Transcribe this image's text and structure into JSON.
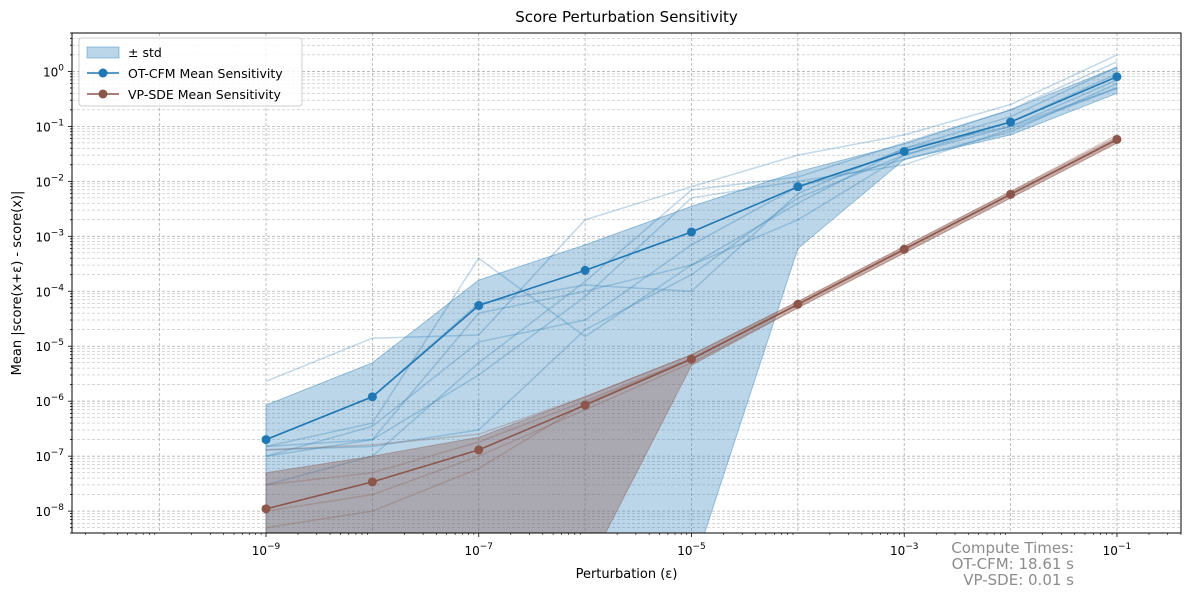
{
  "chart_data": {
    "type": "line",
    "title": "Score Perturbation Sensitivity",
    "xlabel": "Perturbation (ε)",
    "ylabel": "Mean |score(x+ε) - score(x)|",
    "xscale": "log",
    "yscale": "log",
    "xlim": [
      1.5e-11,
      0.4
    ],
    "ylim": [
      4e-09,
      5
    ],
    "grid": true,
    "legend_position": "top-left",
    "x": [
      1e-09,
      1e-08,
      1e-07,
      1e-06,
      1e-05,
      0.0001,
      0.001,
      0.01,
      0.1
    ],
    "x_ticks": [
      1e-09,
      1e-07,
      1e-05,
      0.001,
      0.1
    ],
    "x_tick_labels": [
      {
        "base": "10",
        "exp": "−9"
      },
      {
        "base": "10",
        "exp": "−7"
      },
      {
        "base": "10",
        "exp": "−5"
      },
      {
        "base": "10",
        "exp": "−3"
      },
      {
        "base": "10",
        "exp": "−1"
      }
    ],
    "y_ticks": [
      1e-08,
      1e-07,
      1e-06,
      1e-05,
      0.0001,
      0.001,
      0.01,
      0.1,
      1
    ],
    "y_tick_labels": [
      {
        "base": "10",
        "exp": "−8"
      },
      {
        "base": "10",
        "exp": "−7"
      },
      {
        "base": "10",
        "exp": "−6"
      },
      {
        "base": "10",
        "exp": "−5"
      },
      {
        "base": "10",
        "exp": "−4"
      },
      {
        "base": "10",
        "exp": "−3"
      },
      {
        "base": "10",
        "exp": "−2"
      },
      {
        "base": "10",
        "exp": "−1"
      },
      {
        "base": "10",
        "exp": "0"
      }
    ],
    "series": [
      {
        "name": "OT-CFM Mean Sensitivity",
        "color": "#1f77b4",
        "values": [
          2e-07,
          1.2e-06,
          5.5e-05,
          0.00024,
          0.0012,
          0.008,
          0.035,
          0.12,
          0.8
        ],
        "std_upper": [
          8.5e-07,
          5e-06,
          0.00016,
          0.0007,
          0.0035,
          0.015,
          0.048,
          0.2,
          1.2
        ],
        "std_lower": [
          0,
          0,
          0,
          0,
          0,
          0.0006,
          0.025,
          0.07,
          0.4
        ],
        "individual_runs": [
          [
            2.3e-06,
            1.4e-05,
            1.6e-05,
            0.002,
            0.008,
            0.03,
            0.07,
            0.25,
            2.0
          ],
          [
            1.3e-07,
            1.5e-07,
            3e-07,
            2e-05,
            0.0002,
            0.005,
            0.03,
            0.1,
            0.5
          ],
          [
            1.5e-07,
            2e-07,
            4e-05,
            0.0001,
            0.0003,
            0.004,
            0.04,
            0.15,
            1.2
          ],
          [
            1e-07,
            3.5e-07,
            1.2e-05,
            3e-05,
            0.0007,
            0.008,
            0.025,
            0.08,
            0.6
          ],
          [
            3e-08,
            1e-07,
            5e-06,
            0.00015,
            0.007,
            0.012,
            0.05,
            0.2,
            1.5
          ],
          [
            1.5e-07,
            4e-07,
            0.0004,
            1.5e-05,
            0.0003,
            0.002,
            0.03,
            0.12,
            0.9
          ],
          [
            2e-07,
            1.2e-06,
            6e-05,
            0.00013,
            0.0001,
            0.006,
            0.04,
            0.1,
            0.7
          ],
          [
            1e-07,
            2e-07,
            3e-06,
            8e-05,
            0.005,
            0.01,
            0.02,
            0.09,
            0.5
          ]
        ]
      },
      {
        "name": "VP-SDE Mean Sensitivity",
        "color": "#8c564b",
        "values": [
          1.1e-08,
          3.4e-08,
          1.3e-07,
          8.5e-07,
          5.8e-06,
          5.8e-05,
          0.00058,
          0.0058,
          0.058
        ],
        "std_upper": [
          5e-08,
          1e-07,
          2.2e-07,
          1.2e-06,
          7e-06,
          6.5e-05,
          0.00065,
          0.0065,
          0.065
        ],
        "std_lower": [
          0,
          0,
          0,
          0,
          4.5e-06,
          5e-05,
          0.0005,
          0.005,
          0.05
        ],
        "individual_runs": [
          [
            1.3e-07,
            1.6e-07,
            2.5e-07,
            1.2e-06,
            7e-06,
            6.5e-05,
            0.00065,
            0.0065,
            0.07
          ],
          [
            3e-08,
            5e-08,
            1.8e-07,
            1e-06,
            6e-06,
            6e-05,
            0.0006,
            0.006,
            0.06
          ],
          [
            1e-08,
            2e-08,
            1e-07,
            7e-07,
            5e-06,
            5e-05,
            0.0005,
            0.005,
            0.05
          ],
          [
            5e-09,
            1e-08,
            6e-08,
            9e-07,
            6e-06,
            5.5e-05,
            0.00055,
            0.0055,
            0.055
          ]
        ]
      }
    ],
    "legend_entries": [
      {
        "label": "± std",
        "kind": "patch",
        "color": "#1f77b4"
      },
      {
        "label": "OT-CFM Mean Sensitivity",
        "kind": "line",
        "color": "#1f77b4"
      },
      {
        "label": "VP-SDE Mean Sensitivity",
        "kind": "line",
        "color": "#8c564b"
      }
    ]
  },
  "annotation": {
    "lines": [
      "Compute Times:",
      "OT-CFM: 18.61 s",
      "VP-SDE: 0.01 s"
    ]
  }
}
